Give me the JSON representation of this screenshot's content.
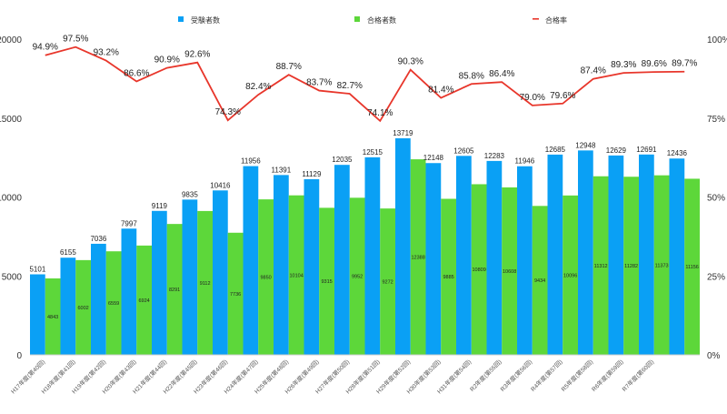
{
  "chart_data": {
    "type": "bar",
    "title": "",
    "legend": {
      "position": "top",
      "items": [
        "受験者数",
        "合格者数",
        "合格率"
      ]
    },
    "colors": {
      "examinees": "#0aa0f5",
      "passers": "#5dd73a",
      "rate": "#e8362b"
    },
    "categories": [
      "H17年度(第40回)",
      "H18年度(第41回)",
      "H19年度(第42回)",
      "H20年度(第43回)",
      "H21年度(第44回)",
      "H22年度(第45回)",
      "H23年度(第46回)",
      "H24年度(第47回)",
      "H25年度(第48回)",
      "H26年度(第49回)",
      "H27年度(第50回)",
      "H28年度(第51回)",
      "H29年度(第52回)",
      "H30年度(第53回)",
      "H31年度(第54回)",
      "R2年度(第55回)",
      "R3年度(第56回)",
      "R4年度(第57回)",
      "R5年度(第58回)",
      "R6年度(第59回)",
      "R7年度(第60回)",
      ""
    ],
    "series": [
      {
        "name": "受験者数",
        "type": "bar",
        "axis": "left",
        "values": [
          5101,
          6155,
          7036,
          7997,
          9119,
          9835,
          10416,
          11956,
          11391,
          11129,
          12035,
          12515,
          13719,
          12148,
          12605,
          12283,
          11946,
          12685,
          12948,
          12629,
          12691,
          12436
        ]
      },
      {
        "name": "合格者数",
        "type": "bar",
        "axis": "left",
        "values": [
          4843,
          6002,
          6559,
          6924,
          8291,
          9112,
          7736,
          9850,
          10104,
          9315,
          9952,
          9272,
          12388,
          9885,
          10809,
          10608,
          9434,
          10096,
          11312,
          11282,
          11373,
          11156
        ]
      },
      {
        "name": "合格率",
        "type": "line",
        "axis": "right",
        "values": [
          94.9,
          97.5,
          93.2,
          86.6,
          90.9,
          92.6,
          74.3,
          82.4,
          88.7,
          83.7,
          82.7,
          74.1,
          90.3,
          81.4,
          85.8,
          86.4,
          79.0,
          79.6,
          87.4,
          89.3,
          89.6,
          89.7
        ]
      }
    ],
    "ylim": [
      0,
      20000
    ],
    "yticks": [
      "0",
      "5000",
      "10000",
      "15000",
      "20000"
    ],
    "y2lim": [
      0,
      100
    ],
    "y2ticks": [
      "0%",
      "25%",
      "50%",
      "75%",
      "100%"
    ],
    "xlabel": "",
    "ylabel": "",
    "grid": false
  }
}
